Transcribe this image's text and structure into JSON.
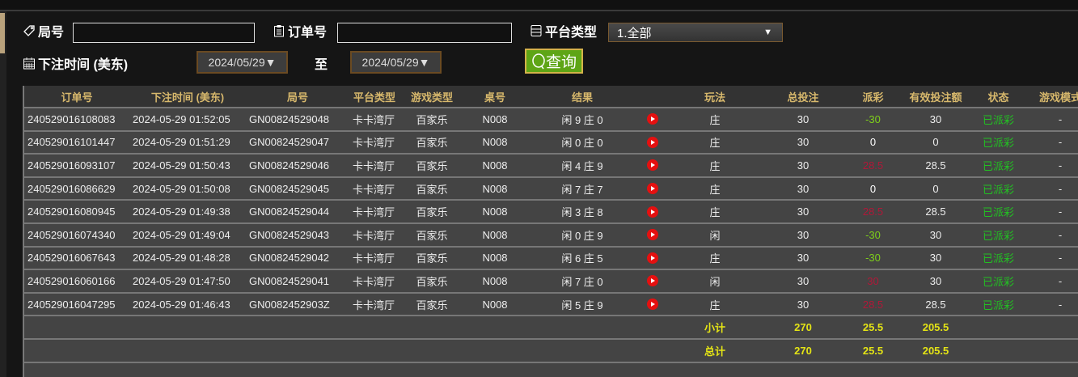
{
  "filters": {
    "round_label": "局号",
    "round_value": "",
    "order_label": "订单号",
    "order_value": "",
    "platform_label": "平台类型",
    "platform_selected": "1.全部",
    "time_label": "下注时间 (美东)",
    "date_from": "2024/05/29▼",
    "to_label": "至",
    "date_to": "2024/05/29▼",
    "query_button": "查询"
  },
  "table": {
    "columns": [
      "订单号",
      "下注时间 (美东)",
      "局号",
      "平台类型",
      "游戏类型",
      "桌号",
      "结果",
      "",
      "玩法",
      "总投注",
      "派彩",
      "有效投注额",
      "状态",
      "游戏模式"
    ],
    "rows": [
      {
        "order": "240529016108083",
        "time": "2024-05-29 01:52:05",
        "round": "GN00824529048",
        "platform": "卡卡湾厅",
        "game": "百家乐",
        "table": "N008",
        "result": "闲 9 庄 0",
        "bet": "庄",
        "total": "30",
        "payout": "-30",
        "payout_color": "#7ecf1a",
        "valid": "30",
        "status": "已派彩",
        "mode": "-"
      },
      {
        "order": "240529016101447",
        "time": "2024-05-29 01:51:29",
        "round": "GN00824529047",
        "platform": "卡卡湾厅",
        "game": "百家乐",
        "table": "N008",
        "result": "闲 0 庄 0",
        "bet": "庄",
        "total": "30",
        "payout": "0",
        "payout_color": "#ffffff",
        "valid": "0",
        "status": "已派彩",
        "mode": "-"
      },
      {
        "order": "240529016093107",
        "time": "2024-05-29 01:50:43",
        "round": "GN00824529046",
        "platform": "卡卡湾厅",
        "game": "百家乐",
        "table": "N008",
        "result": "闲 4 庄 9",
        "bet": "庄",
        "total": "30",
        "payout": "28.5",
        "payout_color": "#b01838",
        "valid": "28.5",
        "status": "已派彩",
        "mode": "-"
      },
      {
        "order": "240529016086629",
        "time": "2024-05-29 01:50:08",
        "round": "GN00824529045",
        "platform": "卡卡湾厅",
        "game": "百家乐",
        "table": "N008",
        "result": "闲 7 庄 7",
        "bet": "庄",
        "total": "30",
        "payout": "0",
        "payout_color": "#ffffff",
        "valid": "0",
        "status": "已派彩",
        "mode": "-"
      },
      {
        "order": "240529016080945",
        "time": "2024-05-29 01:49:38",
        "round": "GN00824529044",
        "platform": "卡卡湾厅",
        "game": "百家乐",
        "table": "N008",
        "result": "闲 3 庄 8",
        "bet": "庄",
        "total": "30",
        "payout": "28.5",
        "payout_color": "#b01838",
        "valid": "28.5",
        "status": "已派彩",
        "mode": "-"
      },
      {
        "order": "240529016074340",
        "time": "2024-05-29 01:49:04",
        "round": "GN00824529043",
        "platform": "卡卡湾厅",
        "game": "百家乐",
        "table": "N008",
        "result": "闲 0 庄 9",
        "bet": "闲",
        "total": "30",
        "payout": "-30",
        "payout_color": "#7ecf1a",
        "valid": "30",
        "status": "已派彩",
        "mode": "-"
      },
      {
        "order": "240529016067643",
        "time": "2024-05-29 01:48:28",
        "round": "GN00824529042",
        "platform": "卡卡湾厅",
        "game": "百家乐",
        "table": "N008",
        "result": "闲 6 庄 5",
        "bet": "庄",
        "total": "30",
        "payout": "-30",
        "payout_color": "#7ecf1a",
        "valid": "30",
        "status": "已派彩",
        "mode": "-"
      },
      {
        "order": "240529016060166",
        "time": "2024-05-29 01:47:50",
        "round": "GN00824529041",
        "platform": "卡卡湾厅",
        "game": "百家乐",
        "table": "N008",
        "result": "闲 7 庄 0",
        "bet": "闲",
        "total": "30",
        "payout": "30",
        "payout_color": "#b01838",
        "valid": "30",
        "status": "已派彩",
        "mode": "-"
      },
      {
        "order": "240529016047295",
        "time": "2024-05-29 01:46:43",
        "round": "GN0082452903Z",
        "platform": "卡卡湾厅",
        "game": "百家乐",
        "table": "N008",
        "result": "闲 5 庄 9",
        "bet": "庄",
        "total": "30",
        "payout": "28.5",
        "payout_color": "#b01838",
        "valid": "28.5",
        "status": "已派彩",
        "mode": "-"
      }
    ],
    "subtotal": {
      "label": "小计",
      "total": "270",
      "payout": "25.5",
      "valid": "205.5"
    },
    "grandtotal": {
      "label": "总计",
      "total": "270",
      "payout": "25.5",
      "valid": "205.5"
    }
  },
  "colors": {
    "status_green": "#22c022",
    "total_yellow": "#e4e415",
    "header_gold": "#d7b86c",
    "query_green": "#5ea516"
  }
}
